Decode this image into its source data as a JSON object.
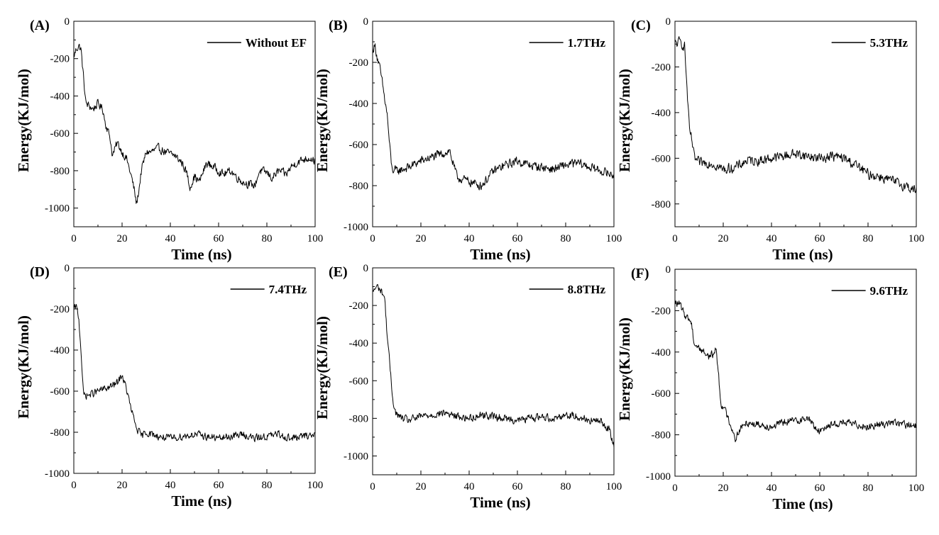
{
  "chart_data": [
    {
      "type": "line",
      "panel_label": "(A)",
      "xlabel": "Time (ns)",
      "ylabel": "Energy(KJ/mol)",
      "xlim": [
        0,
        100
      ],
      "ylim": [
        -1100,
        0
      ],
      "xticks": [
        0,
        20,
        40,
        60,
        80,
        100
      ],
      "yticks": [
        0,
        -200,
        -400,
        -600,
        -800,
        -1000
      ],
      "grid": false,
      "legend_position": "top-right",
      "color": "#000000",
      "series": [
        {
          "name": "Without EF",
          "anchors": [
            [
              0,
              -190
            ],
            [
              1,
              -150
            ],
            [
              2,
              -130
            ],
            [
              3,
              -150
            ],
            [
              4,
              -300
            ],
            [
              5,
              -440
            ],
            [
              8,
              -470
            ],
            [
              10,
              -440
            ],
            [
              12,
              -470
            ],
            [
              13,
              -540
            ],
            [
              15,
              -620
            ],
            [
              16,
              -720
            ],
            [
              18,
              -650
            ],
            [
              20,
              -700
            ],
            [
              22,
              -740
            ],
            [
              24,
              -840
            ],
            [
              25,
              -900
            ],
            [
              26,
              -980
            ],
            [
              27,
              -900
            ],
            [
              28,
              -800
            ],
            [
              30,
              -700
            ],
            [
              32,
              -700
            ],
            [
              35,
              -680
            ],
            [
              38,
              -700
            ],
            [
              40,
              -710
            ],
            [
              42,
              -720
            ],
            [
              45,
              -760
            ],
            [
              47,
              -820
            ],
            [
              48,
              -890
            ],
            [
              50,
              -830
            ],
            [
              52,
              -860
            ],
            [
              55,
              -760
            ],
            [
              58,
              -780
            ],
            [
              60,
              -800
            ],
            [
              62,
              -820
            ],
            [
              65,
              -800
            ],
            [
              68,
              -840
            ],
            [
              70,
              -860
            ],
            [
              72,
              -870
            ],
            [
              75,
              -880
            ],
            [
              77,
              -800
            ],
            [
              80,
              -810
            ],
            [
              82,
              -840
            ],
            [
              85,
              -800
            ],
            [
              88,
              -820
            ],
            [
              90,
              -780
            ],
            [
              92,
              -760
            ],
            [
              95,
              -740
            ],
            [
              98,
              -730
            ],
            [
              100,
              -750
            ]
          ],
          "noise": 30
        }
      ]
    },
    {
      "type": "line",
      "panel_label": "(B)",
      "xlabel": "Time (ns)",
      "ylabel": "Energy(KJ/mol)",
      "xlim": [
        0,
        100
      ],
      "ylim": [
        -1000,
        0
      ],
      "xticks": [
        0,
        20,
        40,
        60,
        80,
        100
      ],
      "yticks": [
        0,
        -200,
        -400,
        -600,
        -800,
        -1000
      ],
      "grid": false,
      "legend_position": "top-right",
      "color": "#000000",
      "series": [
        {
          "name": "1.7THz",
          "anchors": [
            [
              0,
              -140
            ],
            [
              1,
              -120
            ],
            [
              2,
              -180
            ],
            [
              3,
              -230
            ],
            [
              4,
              -300
            ],
            [
              5,
              -380
            ],
            [
              6,
              -450
            ],
            [
              7,
              -600
            ],
            [
              8,
              -720
            ],
            [
              10,
              -730
            ],
            [
              15,
              -710
            ],
            [
              20,
              -680
            ],
            [
              25,
              -660
            ],
            [
              30,
              -640
            ],
            [
              32,
              -630
            ],
            [
              33,
              -680
            ],
            [
              35,
              -760
            ],
            [
              40,
              -780
            ],
            [
              45,
              -800
            ],
            [
              48,
              -760
            ],
            [
              50,
              -730
            ],
            [
              55,
              -700
            ],
            [
              60,
              -680
            ],
            [
              65,
              -700
            ],
            [
              70,
              -710
            ],
            [
              75,
              -720
            ],
            [
              80,
              -700
            ],
            [
              85,
              -690
            ],
            [
              90,
              -710
            ],
            [
              95,
              -730
            ],
            [
              100,
              -750
            ]
          ],
          "noise": 30
        }
      ]
    },
    {
      "type": "line",
      "panel_label": "(C)",
      "xlabel": "Time (ns)",
      "ylabel": "Energy(KJ/mol)",
      "xlim": [
        0,
        100
      ],
      "ylim": [
        -900,
        0
      ],
      "xticks": [
        0,
        20,
        40,
        60,
        80,
        100
      ],
      "yticks": [
        0,
        -200,
        -400,
        -600,
        -800
      ],
      "grid": false,
      "legend_position": "top-right",
      "color": "#000000",
      "series": [
        {
          "name": "5.3THz",
          "anchors": [
            [
              0,
              -100
            ],
            [
              2,
              -90
            ],
            [
              4,
              -110
            ],
            [
              5,
              -300
            ],
            [
              6,
              -480
            ],
            [
              7,
              -520
            ],
            [
              8,
              -600
            ],
            [
              10,
              -620
            ],
            [
              15,
              -620
            ],
            [
              20,
              -650
            ],
            [
              25,
              -640
            ],
            [
              30,
              -610
            ],
            [
              35,
              -610
            ],
            [
              40,
              -600
            ],
            [
              45,
              -590
            ],
            [
              50,
              -580
            ],
            [
              55,
              -590
            ],
            [
              60,
              -600
            ],
            [
              65,
              -590
            ],
            [
              70,
              -600
            ],
            [
              75,
              -630
            ],
            [
              80,
              -670
            ],
            [
              85,
              -680
            ],
            [
              90,
              -700
            ],
            [
              95,
              -720
            ],
            [
              100,
              -740
            ]
          ],
          "noise": 30
        }
      ]
    },
    {
      "type": "line",
      "panel_label": "(D)",
      "xlabel": "Time (ns)",
      "ylabel": "Energy(KJ/mol)",
      "xlim": [
        0,
        100
      ],
      "ylim": [
        -1000,
        0
      ],
      "xticks": [
        0,
        20,
        40,
        60,
        80,
        100
      ],
      "yticks": [
        0,
        -200,
        -400,
        -600,
        -800,
        -1000
      ],
      "grid": false,
      "legend_position": "top-right",
      "color": "#000000",
      "series": [
        {
          "name": "7.4THz",
          "anchors": [
            [
              0,
              -200
            ],
            [
              1,
              -190
            ],
            [
              2,
              -240
            ],
            [
              3,
              -400
            ],
            [
              4,
              -620
            ],
            [
              6,
              -620
            ],
            [
              10,
              -600
            ],
            [
              15,
              -580
            ],
            [
              18,
              -560
            ],
            [
              20,
              -520
            ],
            [
              22,
              -600
            ],
            [
              24,
              -700
            ],
            [
              26,
              -780
            ],
            [
              28,
              -820
            ],
            [
              30,
              -800
            ],
            [
              35,
              -820
            ],
            [
              40,
              -830
            ],
            [
              45,
              -820
            ],
            [
              50,
              -810
            ],
            [
              55,
              -820
            ],
            [
              60,
              -830
            ],
            [
              65,
              -820
            ],
            [
              70,
              -810
            ],
            [
              75,
              -830
            ],
            [
              80,
              -820
            ],
            [
              85,
              -810
            ],
            [
              90,
              -830
            ],
            [
              95,
              -820
            ],
            [
              100,
              -810
            ]
          ],
          "noise": 25
        }
      ]
    },
    {
      "type": "line",
      "panel_label": "(E)",
      "xlabel": "Time (ns)",
      "ylabel": "Energy(KJ/mol)",
      "xlim": [
        0,
        100
      ],
      "ylim": [
        -1100,
        0
      ],
      "xticks": [
        0,
        20,
        40,
        60,
        80,
        100
      ],
      "yticks": [
        0,
        -200,
        -400,
        -600,
        -800,
        -1000
      ],
      "grid": false,
      "legend_position": "top-right",
      "color": "#000000",
      "series": [
        {
          "name": "8.8THz",
          "anchors": [
            [
              0,
              -130
            ],
            [
              1,
              -110
            ],
            [
              2,
              -100
            ],
            [
              4,
              -130
            ],
            [
              5,
              -160
            ],
            [
              6,
              -350
            ],
            [
              7,
              -500
            ],
            [
              8,
              -650
            ],
            [
              9,
              -750
            ],
            [
              10,
              -780
            ],
            [
              12,
              -800
            ],
            [
              15,
              -810
            ],
            [
              20,
              -790
            ],
            [
              25,
              -780
            ],
            [
              30,
              -770
            ],
            [
              35,
              -790
            ],
            [
              40,
              -800
            ],
            [
              45,
              -780
            ],
            [
              50,
              -790
            ],
            [
              55,
              -800
            ],
            [
              60,
              -810
            ],
            [
              65,
              -800
            ],
            [
              70,
              -790
            ],
            [
              75,
              -800
            ],
            [
              80,
              -780
            ],
            [
              85,
              -790
            ],
            [
              90,
              -810
            ],
            [
              95,
              -820
            ],
            [
              98,
              -860
            ],
            [
              100,
              -950
            ]
          ],
          "noise": 28
        }
      ]
    },
    {
      "type": "line",
      "panel_label": "(F)",
      "xlabel": "Time (ns)",
      "ylabel": "Energy(KJ/mol)",
      "xlim": [
        0,
        100
      ],
      "ylim": [
        -1000,
        0
      ],
      "xticks": [
        0,
        20,
        40,
        60,
        80,
        100
      ],
      "yticks": [
        0,
        -200,
        -400,
        -600,
        -800,
        -1000
      ],
      "grid": false,
      "legend_position": "top-right",
      "color": "#000000",
      "series": [
        {
          "name": "9.6THz",
          "anchors": [
            [
              0,
              -160
            ],
            [
              2,
              -170
            ],
            [
              4,
              -220
            ],
            [
              6,
              -240
            ],
            [
              7,
              -270
            ],
            [
              8,
              -360
            ],
            [
              10,
              -380
            ],
            [
              12,
              -400
            ],
            [
              14,
              -420
            ],
            [
              16,
              -410
            ],
            [
              17,
              -380
            ],
            [
              18,
              -500
            ],
            [
              19,
              -650
            ],
            [
              20,
              -660
            ],
            [
              22,
              -720
            ],
            [
              24,
              -780
            ],
            [
              25,
              -820
            ],
            [
              27,
              -770
            ],
            [
              30,
              -740
            ],
            [
              35,
              -750
            ],
            [
              40,
              -760
            ],
            [
              45,
              -740
            ],
            [
              50,
              -730
            ],
            [
              55,
              -720
            ],
            [
              58,
              -760
            ],
            [
              60,
              -790
            ],
            [
              62,
              -760
            ],
            [
              65,
              -750
            ],
            [
              70,
              -740
            ],
            [
              75,
              -750
            ],
            [
              80,
              -760
            ],
            [
              85,
              -750
            ],
            [
              90,
              -740
            ],
            [
              95,
              -750
            ],
            [
              100,
              -760
            ]
          ],
          "noise": 25
        }
      ]
    }
  ]
}
